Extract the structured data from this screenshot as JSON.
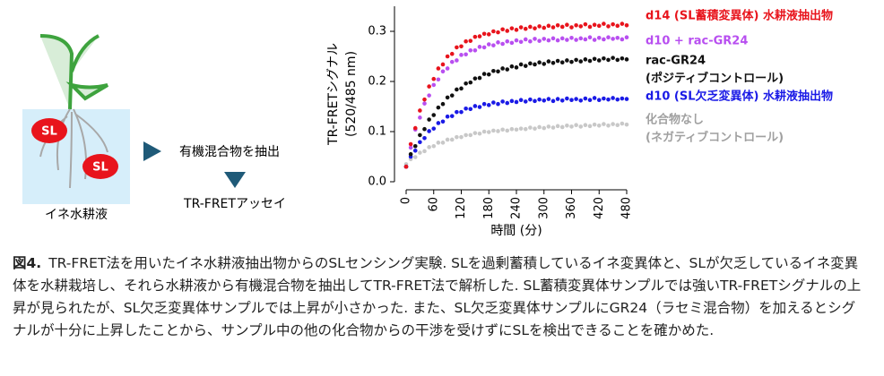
{
  "diagram": {
    "sl_labels": [
      "SL",
      "SL"
    ],
    "box_label": "イネ水耕液",
    "steps": [
      "有機混合物を抽出",
      "TR-FRETアッセイ"
    ]
  },
  "chart_data": {
    "type": "scatter",
    "y_label": "TR-FRETシグナル",
    "y_label_unit": "(520/485 nm)",
    "x_label": "時間 (分)",
    "x": [
      0,
      10,
      20,
      30,
      40,
      50,
      60,
      70,
      80,
      90,
      100,
      110,
      120,
      130,
      140,
      150,
      160,
      170,
      180,
      190,
      200,
      210,
      220,
      230,
      240,
      250,
      260,
      270,
      280,
      290,
      300,
      310,
      320,
      330,
      340,
      350,
      360,
      370,
      380,
      390,
      400,
      410,
      420,
      430,
      440,
      450,
      460,
      470,
      480
    ],
    "series": [
      {
        "name": "d14 (SL蓄積変異体) 水耕液抽出物",
        "color": "#e8141c",
        "values": [
          0.03,
          0.075,
          0.107,
          0.142,
          0.164,
          0.19,
          0.205,
          0.226,
          0.234,
          0.25,
          0.255,
          0.268,
          0.27,
          0.28,
          0.281,
          0.289,
          0.29,
          0.295,
          0.294,
          0.3,
          0.298,
          0.304,
          0.301,
          0.306,
          0.303,
          0.308,
          0.305,
          0.309,
          0.306,
          0.31,
          0.307,
          0.311,
          0.308,
          0.312,
          0.309,
          0.313,
          0.308,
          0.312,
          0.31,
          0.314,
          0.309,
          0.313,
          0.311,
          0.315,
          0.31,
          0.314,
          0.311,
          0.315,
          0.312
        ]
      },
      {
        "name": "d10 + rac-GR24",
        "color": "#b84ff0",
        "values": [
          0.03,
          0.068,
          0.104,
          0.128,
          0.156,
          0.172,
          0.193,
          0.204,
          0.22,
          0.226,
          0.239,
          0.242,
          0.253,
          0.254,
          0.262,
          0.262,
          0.269,
          0.268,
          0.274,
          0.272,
          0.278,
          0.275,
          0.28,
          0.277,
          0.282,
          0.279,
          0.284,
          0.28,
          0.285,
          0.281,
          0.285,
          0.282,
          0.286,
          0.282,
          0.286,
          0.283,
          0.287,
          0.283,
          0.286,
          0.284,
          0.288,
          0.283,
          0.287,
          0.284,
          0.288,
          0.285,
          0.287,
          0.284,
          0.288
        ]
      },
      {
        "name": "rac-GR24",
        "note": "(ポジティブコントロール)",
        "color": "#111111",
        "values": [
          0.03,
          0.055,
          0.071,
          0.093,
          0.105,
          0.124,
          0.133,
          0.148,
          0.155,
          0.168,
          0.172,
          0.184,
          0.186,
          0.196,
          0.198,
          0.206,
          0.207,
          0.215,
          0.214,
          0.221,
          0.22,
          0.226,
          0.224,
          0.23,
          0.228,
          0.234,
          0.231,
          0.236,
          0.234,
          0.238,
          0.235,
          0.24,
          0.237,
          0.241,
          0.238,
          0.242,
          0.239,
          0.243,
          0.24,
          0.244,
          0.241,
          0.245,
          0.242,
          0.246,
          0.243,
          0.247,
          0.243,
          0.246,
          0.244
        ]
      },
      {
        "name": "d10 (SL欠乏変異体) 水耕液抽出物",
        "color": "#1a1ae6",
        "values": [
          0.03,
          0.05,
          0.062,
          0.079,
          0.087,
          0.101,
          0.106,
          0.117,
          0.12,
          0.13,
          0.131,
          0.139,
          0.139,
          0.146,
          0.145,
          0.151,
          0.149,
          0.155,
          0.153,
          0.158,
          0.155,
          0.16,
          0.157,
          0.161,
          0.159,
          0.163,
          0.16,
          0.164,
          0.161,
          0.164,
          0.162,
          0.165,
          0.161,
          0.165,
          0.162,
          0.166,
          0.163,
          0.165,
          0.162,
          0.166,
          0.163,
          0.167,
          0.163,
          0.166,
          0.164,
          0.167,
          0.164,
          0.166,
          0.165
        ]
      },
      {
        "name": "化合物なし",
        "note": "(ネガティブコントロール)",
        "color": "#c8c8c8",
        "values": [
          0.035,
          0.045,
          0.049,
          0.058,
          0.061,
          0.069,
          0.071,
          0.078,
          0.078,
          0.084,
          0.084,
          0.089,
          0.089,
          0.093,
          0.093,
          0.097,
          0.096,
          0.1,
          0.099,
          0.102,
          0.101,
          0.104,
          0.102,
          0.105,
          0.104,
          0.106,
          0.105,
          0.108,
          0.106,
          0.109,
          0.107,
          0.11,
          0.108,
          0.111,
          0.109,
          0.112,
          0.11,
          0.113,
          0.11,
          0.113,
          0.111,
          0.114,
          0.112,
          0.115,
          0.112,
          0.115,
          0.113,
          0.116,
          0.114
        ]
      }
    ],
    "xlim": [
      0,
      480
    ],
    "xticks": [
      0,
      60,
      120,
      180,
      240,
      300,
      360,
      420,
      480
    ],
    "ylim": [
      0,
      0.35
    ],
    "yticks": [
      {
        "value": 0,
        "label": "0.0"
      },
      0.1,
      0.2,
      0.3
    ]
  },
  "caption": {
    "label": "図4.",
    "text": "TR-FRET法を用いたイネ水耕液抽出物からのSLセンシング実験. SLを過剰蓄積しているイネ変異体と、SLが欠乏しているイネ変異体を水耕栽培し、それら水耕液から有機混合物を抽出してTR-FRET法で解析した. SL蓄積変異体サンプルでは強いTR-FRETシグナルの上昇が見られたが、SL欠乏変異体サンプルでは上昇が小さかった. また、SL欠乏変異体サンプルにGR24（ラセミ混合物）を加えるとシグナルが十分に上昇したことから、サンプル中の他の化合物からの干渉を受けずにSLを検出できることを確かめた."
  }
}
